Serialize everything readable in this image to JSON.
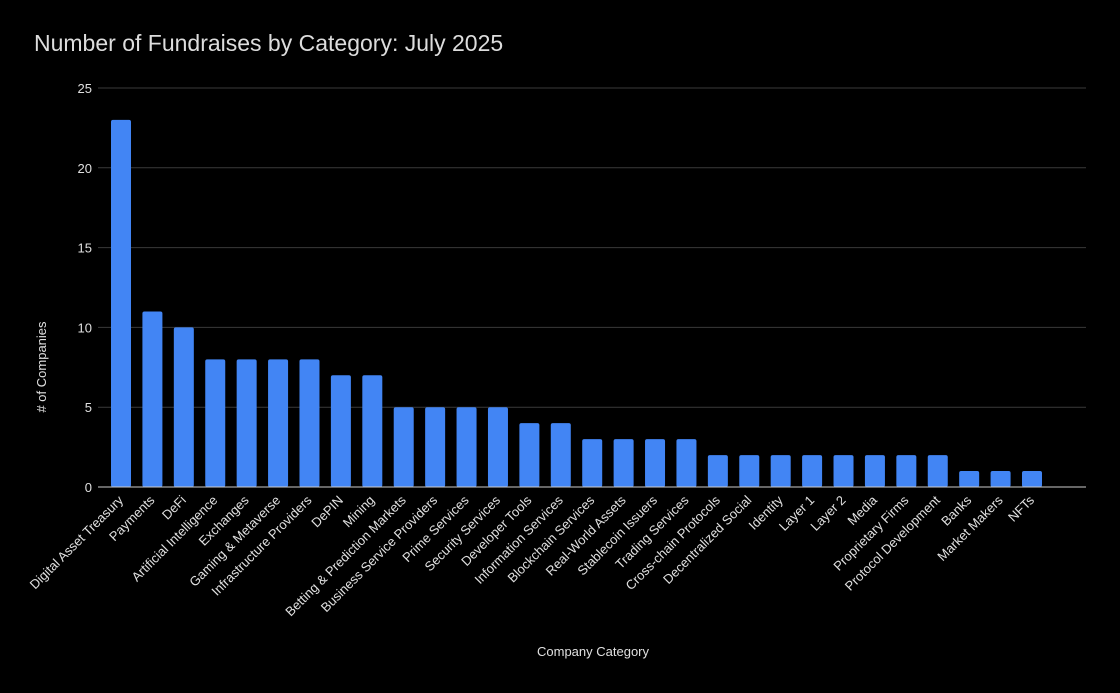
{
  "chart_data": {
    "type": "bar",
    "title": "Number of Fundraises by Category: July 2025",
    "xlabel": "Company Category",
    "ylabel": "# of Companies",
    "ylim": [
      0,
      25
    ],
    "yticks": [
      0,
      5,
      10,
      15,
      20,
      25
    ],
    "grid": true,
    "legend": "none",
    "bar_color": "#4285F4",
    "categories": [
      "Digital Asset Treasury",
      "Payments",
      "DeFi",
      "Artificial Intelligence",
      "Exchanges",
      "Gaming & Metaverse",
      "Infrastructure Providers",
      "DePIN",
      "Mining",
      "Betting & Prediction Markets",
      "Business Service Providers",
      "Prime Services",
      "Security Services",
      "Developer Tools",
      "Information Services",
      "Blockchain Services",
      "Real-World Assets",
      "Stablecoin Issuers",
      "Trading Services",
      "Cross-chain Protocols",
      "Decentralized Social",
      "Identity",
      "Layer 1",
      "Layer 2",
      "Media",
      "Proprietary Firms",
      "Protocol Development",
      "Banks",
      "Market Makers",
      "NFTs"
    ],
    "values": [
      23,
      11,
      10,
      8,
      8,
      8,
      8,
      7,
      7,
      5,
      5,
      5,
      5,
      4,
      4,
      3,
      3,
      3,
      3,
      2,
      2,
      2,
      2,
      2,
      2,
      2,
      2,
      1,
      1,
      1
    ]
  }
}
